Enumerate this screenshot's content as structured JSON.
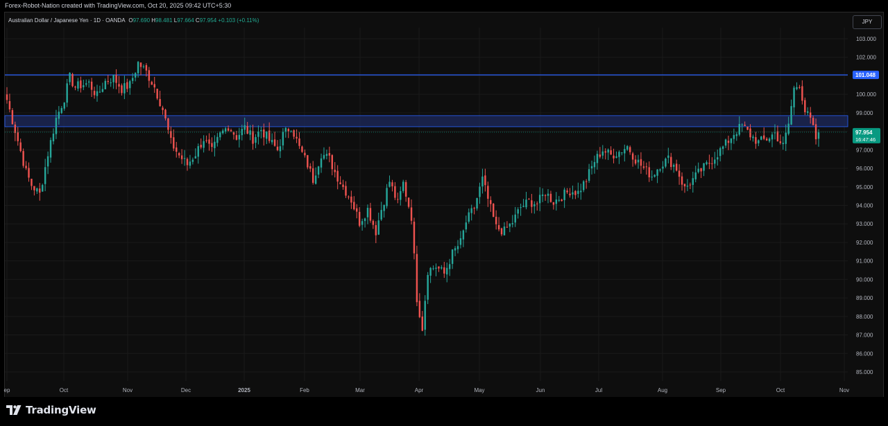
{
  "header": {
    "caption": "Forex-Robot-Nation created with TradingView.com, Oct 20, 2025 09:42 UTC+5:30"
  },
  "legend": {
    "symbol": "Australian Dollar / Japanese Yen · 1D · OANDA",
    "o_label": "O",
    "o_value": "97.690",
    "h_label": "H",
    "h_value": "98.481",
    "l_label": "L",
    "l_value": "97.664",
    "c_label": "C",
    "c_value": "97.954",
    "change": "+0.103 (+0.11%)"
  },
  "currency_button": "JPY",
  "brand": {
    "name": "TradingView"
  },
  "colors": {
    "up": "#26a69a",
    "down": "#ef5350",
    "line": "#2962ff",
    "zone": "#1e2a5e",
    "current": "#089981"
  },
  "chart_data": {
    "type": "candlestick",
    "y_axis_ticks": [
      "103.000",
      "102.000",
      "101.000",
      "100.000",
      "99.000",
      "98.000",
      "97.000",
      "96.000",
      "95.000",
      "94.000",
      "93.000",
      "92.000",
      "91.000",
      "90.000",
      "89.000",
      "88.000",
      "87.000",
      "86.000",
      "85.000"
    ],
    "ylim": [
      84.6,
      103.7
    ],
    "x_axis_ticks": [
      "ep",
      "Oct",
      "Nov",
      "Dec",
      "2025",
      "Feb",
      "Mar",
      "Apr",
      "May",
      "Jun",
      "Jul",
      "Aug",
      "Sep",
      "Oct",
      "Nov"
    ],
    "horizontal_line": {
      "value": 101.048,
      "label": "101.048"
    },
    "zone": {
      "from": 98.25,
      "to": 98.85
    },
    "last_price": {
      "value": 97.954,
      "label": "97.954",
      "countdown": "16:47:46"
    },
    "close_path": [
      [
        0,
        99.7
      ],
      [
        4,
        97.5
      ],
      [
        7,
        95.8
      ],
      [
        9,
        95.1
      ],
      [
        12,
        94.6
      ],
      [
        15,
        96.8
      ],
      [
        18,
        98.7
      ],
      [
        21,
        99.8
      ],
      [
        23,
        100.9
      ],
      [
        25,
        100.4
      ],
      [
        27,
        100.5
      ],
      [
        30,
        100.6
      ],
      [
        33,
        99.9
      ],
      [
        36,
        100.7
      ],
      [
        39,
        100.9
      ],
      [
        42,
        100.3
      ],
      [
        45,
        100.5
      ],
      [
        48,
        101.7
      ],
      [
        51,
        101.2
      ],
      [
        54,
        100.4
      ],
      [
        57,
        99.2
      ],
      [
        60,
        97.4
      ],
      [
        63,
        96.7
      ],
      [
        66,
        96.2
      ],
      [
        69,
        96.8
      ],
      [
        72,
        97.6
      ],
      [
        75,
        96.9
      ],
      [
        78,
        97.8
      ],
      [
        81,
        98.3
      ],
      [
        84,
        97.7
      ],
      [
        87,
        98.2
      ],
      [
        90,
        97.6
      ],
      [
        93,
        98.1
      ],
      [
        96,
        97.5
      ],
      [
        99,
        97.0
      ],
      [
        101,
        97.8
      ],
      [
        104,
        98.3
      ],
      [
        107,
        97.1
      ],
      [
        110,
        96.2
      ],
      [
        112,
        95.4
      ],
      [
        115,
        96.8
      ],
      [
        118,
        96.5
      ],
      [
        120,
        95.8
      ],
      [
        123,
        95.0
      ],
      [
        126,
        94.3
      ],
      [
        129,
        93.1
      ],
      [
        132,
        93.8
      ],
      [
        135,
        92.6
      ],
      [
        137,
        93.8
      ],
      [
        140,
        95.3
      ],
      [
        143,
        94.1
      ],
      [
        145,
        95.2
      ],
      [
        148,
        93.4
      ],
      [
        150,
        89.0
      ],
      [
        152,
        87.4
      ],
      [
        154,
        90.5
      ],
      [
        157,
        90.7
      ],
      [
        160,
        90.3
      ],
      [
        163,
        91.4
      ],
      [
        166,
        92.0
      ],
      [
        168,
        93.1
      ],
      [
        171,
        93.9
      ],
      [
        174,
        95.4
      ],
      [
        177,
        93.8
      ],
      [
        179,
        92.8
      ],
      [
        182,
        92.6
      ],
      [
        185,
        93.1
      ],
      [
        188,
        93.9
      ],
      [
        191,
        94.2
      ],
      [
        194,
        94.1
      ],
      [
        197,
        94.7
      ],
      [
        200,
        94.2
      ],
      [
        203,
        94.5
      ],
      [
        206,
        94.8
      ],
      [
        209,
        94.7
      ],
      [
        212,
        95.4
      ],
      [
        215,
        96.4
      ],
      [
        218,
        97.0
      ],
      [
        221,
        96.7
      ],
      [
        224,
        96.9
      ],
      [
        227,
        97.2
      ],
      [
        230,
        96.5
      ],
      [
        233,
        96.0
      ],
      [
        236,
        95.6
      ],
      [
        239,
        96.2
      ],
      [
        242,
        96.5
      ],
      [
        245,
        96.0
      ],
      [
        248,
        94.9
      ],
      [
        251,
        95.4
      ],
      [
        254,
        95.9
      ],
      [
        257,
        96.3
      ],
      [
        260,
        96.8
      ],
      [
        263,
        97.3
      ],
      [
        266,
        97.9
      ],
      [
        269,
        98.3
      ],
      [
        272,
        97.8
      ],
      [
        275,
        97.4
      ],
      [
        278,
        97.6
      ],
      [
        281,
        97.9
      ],
      [
        284,
        97.2
      ],
      [
        286,
        98.4
      ],
      [
        288,
        100.3
      ],
      [
        290,
        100.6
      ],
      [
        292,
        99.1
      ],
      [
        294,
        98.6
      ],
      [
        296,
        97.6
      ],
      [
        297,
        97.954
      ]
    ]
  }
}
